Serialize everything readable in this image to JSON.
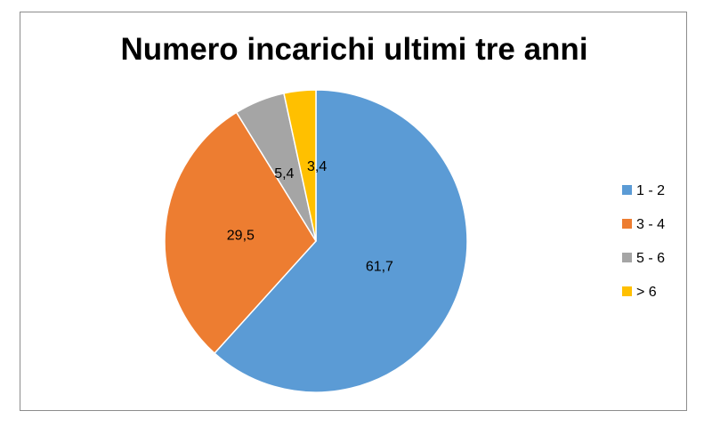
{
  "chart_data": {
    "type": "pie",
    "title": "Numero incarichi ultimi tre anni",
    "categories": [
      "1 - 2",
      "3 - 4",
      "5 - 6",
      "> 6"
    ],
    "values": [
      61.7,
      29.5,
      5.4,
      3.4
    ],
    "data_labels": [
      "61,7",
      "29,5",
      "5,4",
      "3,4"
    ],
    "colors": [
      "#5b9bd5",
      "#ed7d31",
      "#a5a5a5",
      "#ffc000"
    ],
    "legend_position": "right",
    "start_angle": "12 o'clock",
    "direction": "clockwise"
  }
}
